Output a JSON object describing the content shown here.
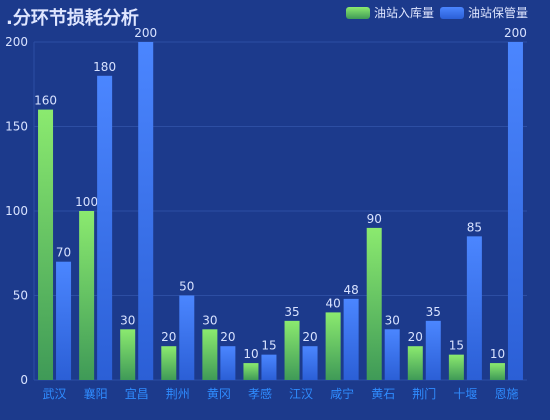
{
  "title": ".分环节损耗分析",
  "legend": [
    {
      "label": "油站入库量",
      "color": "#7ee36a"
    },
    {
      "label": "油站保管量",
      "color": "#3f7cff"
    }
  ],
  "chart_data": {
    "type": "bar",
    "title": ".分环节损耗分析",
    "categories": [
      "武汉",
      "襄阳",
      "宜昌",
      "荆州",
      "黄冈",
      "孝感",
      "江汉",
      "咸宁",
      "黄石",
      "荆门",
      "十堰",
      "恩施"
    ],
    "series": [
      {
        "name": "油站入库量",
        "values": [
          160,
          100,
          30,
          20,
          30,
          10,
          35,
          40,
          90,
          20,
          15,
          10
        ]
      },
      {
        "name": "油站保管量",
        "values": [
          70,
          180,
          200,
          50,
          20,
          15,
          20,
          48,
          30,
          35,
          85,
          200
        ]
      }
    ],
    "ylim": [
      0,
      200
    ],
    "yticks": [
      0,
      50,
      100,
      150,
      200
    ],
    "xlabel": "",
    "ylabel": "",
    "grid": true,
    "legend_position": "top-right",
    "colors": {
      "series1_top": "#8bea6f",
      "series1_bottom": "#3f9a57",
      "series2_top": "#4b86ff",
      "series2_bottom": "#2b5fd6",
      "grid": "#2d4ea3",
      "tick": "#d8e2ff",
      "category": "#2f8cff"
    }
  }
}
